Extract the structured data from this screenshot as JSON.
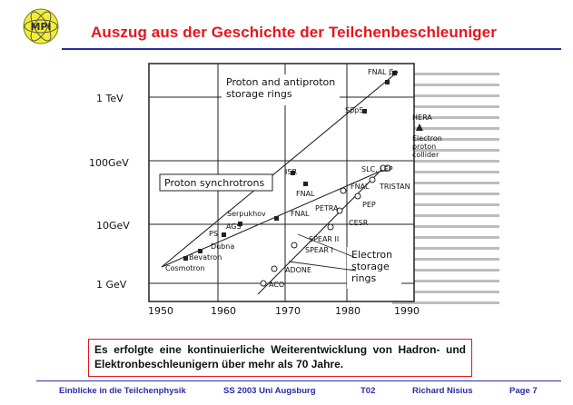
{
  "slide": {
    "title": "Auszug aus der Geschichte der Teilchenbeschleuniger",
    "logo_text": "MPI",
    "callout": "Es erfolgte eine kontinuierliche Weiterentwicklung von Hadron- und Elektronbeschleunigern über mehr als 70 Jahre.",
    "accent_color": "#e8141e",
    "rule_color": "#2a2aa8"
  },
  "footer": {
    "course": "Einblicke in die Teilchenphysik",
    "term": "SS 2003 Uni Augsburg",
    "id": "T02",
    "author": "Richard Nisius",
    "page": "Page 7"
  },
  "figure": {
    "y_tick_labels": [
      "1 TeV",
      "100GeV",
      "10GeV",
      "1 GeV"
    ],
    "x_tick_labels": [
      "1950",
      "1960",
      "1970",
      "1980",
      "1990"
    ],
    "region_labels": {
      "proton_antiproton": [
        "Proton and antiproton",
        "storage rings"
      ],
      "proton_synchrotrons": "Proton synchrotrons",
      "electron_storage": [
        "Electron",
        "storage",
        "rings"
      ],
      "electron_proton": [
        "Electron",
        "proton",
        "collider"
      ]
    },
    "machines": {
      "fnal_ppbar": "FNAL p̅p",
      "spps": "Sp̅pS",
      "hera": "HERA",
      "isr": "ISR",
      "fnal_1": "FNAL",
      "fnal_2": "FNAL",
      "fnal_3": "FNAL",
      "serpukhov": "Serpukhov",
      "ags": "AGS",
      "ps": "PS",
      "dubna": "Dubna",
      "bevatron": "Bevatron",
      "cosmotron": "Cosmotron",
      "slc_lep": "SLC, LEP",
      "tristan": "TRISTAN",
      "petra": "PETRA",
      "pep": "PEP",
      "cesr": "CESR",
      "spear2": "SPEAR II",
      "spear1": "SPEAR I",
      "adone": "ADONE",
      "aco": "ACO"
    }
  }
}
